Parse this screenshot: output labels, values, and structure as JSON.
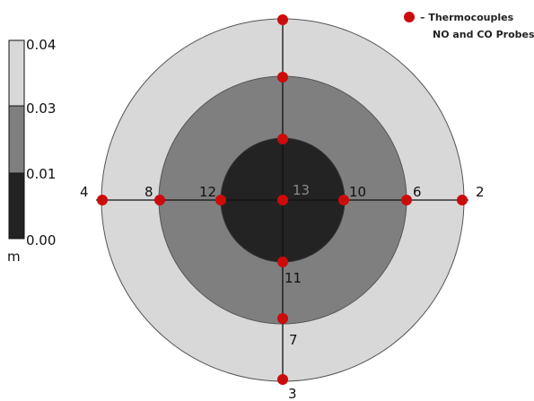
{
  "colors": {
    "outer_ring": "#d8d8d8",
    "middle_ring": "#7f7f7f",
    "inner_core": "#232323",
    "probe": "#cc0b0b",
    "line": "#111111"
  },
  "legend": {
    "line1": "– Thermocouples",
    "line2": "NO and CO Probes",
    "marker_icon": "red-dot-icon"
  },
  "colorbar": {
    "unit": "m",
    "ticks": [
      "0.04",
      "0.03",
      "0.01",
      "0.00"
    ]
  },
  "probes": [
    {
      "id": "2",
      "label": "2"
    },
    {
      "id": "3",
      "label": "3"
    },
    {
      "id": "4",
      "label": "4"
    },
    {
      "id": "6",
      "label": "6"
    },
    {
      "id": "7",
      "label": "7"
    },
    {
      "id": "8",
      "label": "8"
    },
    {
      "id": "10",
      "label": "10"
    },
    {
      "id": "11",
      "label": "11"
    },
    {
      "id": "12",
      "label": "12"
    },
    {
      "id": "13",
      "label": "13"
    }
  ]
}
